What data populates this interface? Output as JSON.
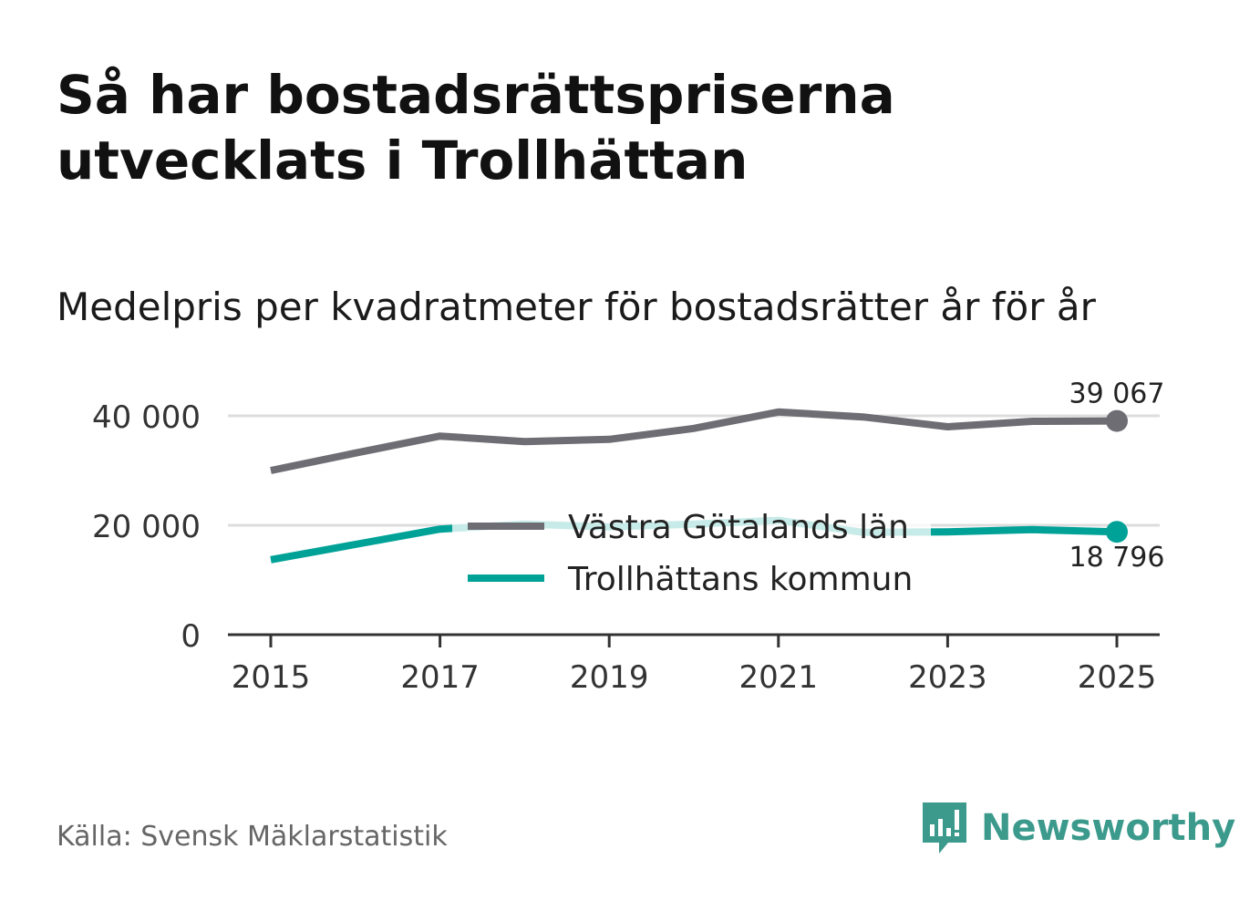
{
  "title": "Så har bostadsrättspriserna utvecklats i Trollhättan",
  "subtitle": "Medelpris per kvadratmeter för bostadsrätter år för år",
  "source": "Källa: Svensk Mäklarstatistik",
  "brand": "Newsworthy",
  "colors": {
    "gray": "#6e6d74",
    "teal": "#00a298",
    "grid": "#dddddd",
    "axis": "#333333",
    "brand": "#3b9a8c"
  },
  "chart_data": {
    "type": "line",
    "title": "Medelpris per kvadratmeter för bostadsrätter år för år",
    "x": [
      2015,
      2016,
      2017,
      2018,
      2019,
      2020,
      2021,
      2022,
      2023,
      2024,
      2025
    ],
    "x_ticks": [
      2015,
      2017,
      2019,
      2021,
      2023,
      2025
    ],
    "x_tick_labels": [
      "2015",
      "2017",
      "2019",
      "2021",
      "2023",
      "2025"
    ],
    "y_ticks": [
      0,
      20000,
      40000
    ],
    "y_tick_labels": [
      "0",
      "20 000",
      "40 000"
    ],
    "ylim": [
      0,
      40000
    ],
    "grid": true,
    "legend_placement": "center",
    "series": [
      {
        "name": "Västra Götalands län",
        "color": "#6e6d74",
        "values": [
          30000,
          33200,
          36300,
          35300,
          35700,
          37700,
          40700,
          39800,
          38000,
          39000,
          39067
        ],
        "end_label": "39 067"
      },
      {
        "name": "Trollhättans kommun",
        "color": "#00a298",
        "values": [
          13700,
          16500,
          19300,
          20200,
          19700,
          20200,
          20900,
          18700,
          18800,
          19200,
          18796
        ],
        "end_label": "18 796"
      }
    ]
  }
}
